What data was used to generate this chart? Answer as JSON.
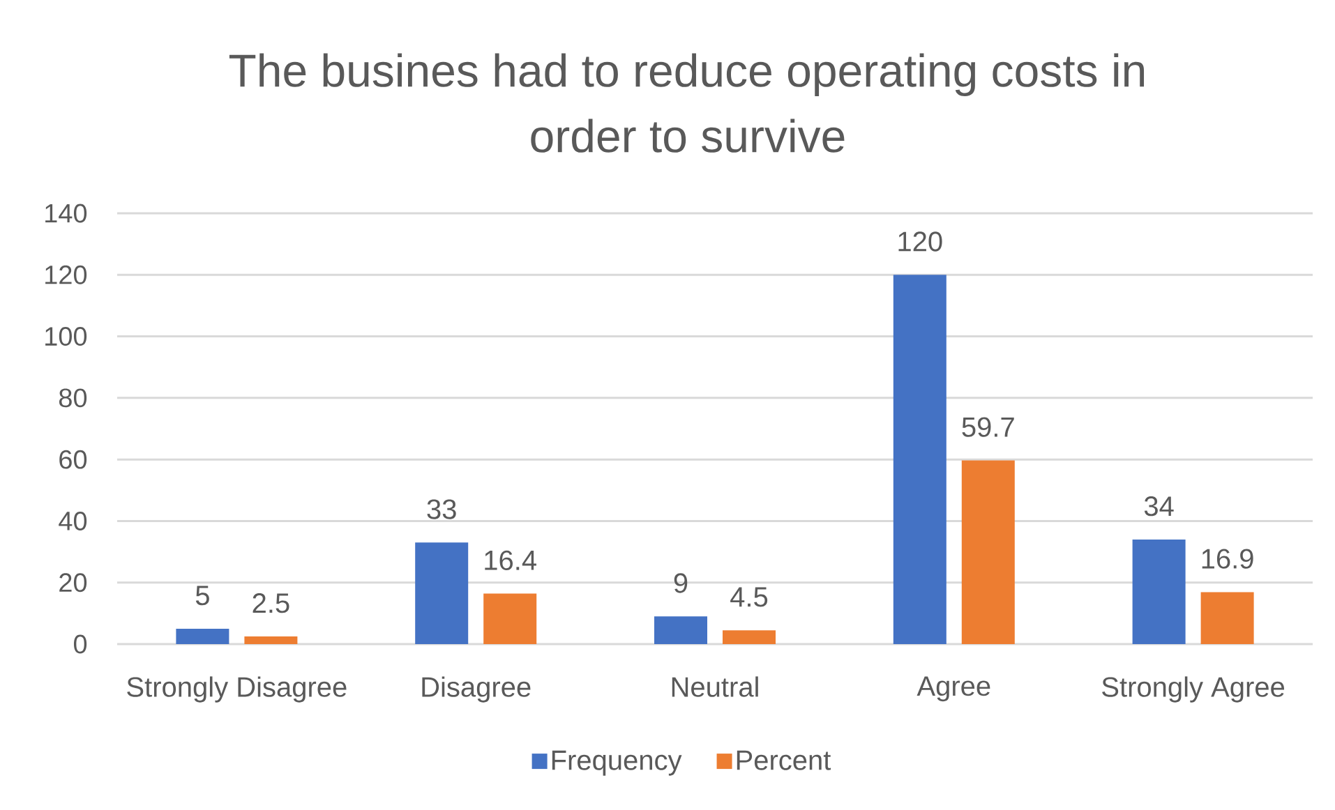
{
  "chart_data": {
    "type": "bar",
    "title": "The busines had to reduce operating costs in order to survive",
    "categories": [
      "Strongly Disagree",
      "Disagree",
      "Neutral",
      "Agree",
      "Strongly Agree"
    ],
    "series": [
      {
        "name": "Frequency",
        "color": "#4472c4",
        "values": [
          5,
          33,
          9,
          120,
          34
        ]
      },
      {
        "name": "Percent",
        "color": "#ed7d31",
        "values": [
          2.5,
          16.4,
          4.5,
          59.7,
          16.9
        ]
      }
    ],
    "ylim": [
      0,
      140
    ],
    "yticks": [
      0,
      20,
      40,
      60,
      80,
      100,
      120,
      140
    ],
    "grid": "y",
    "legend": "bottom",
    "data_labels": true
  }
}
